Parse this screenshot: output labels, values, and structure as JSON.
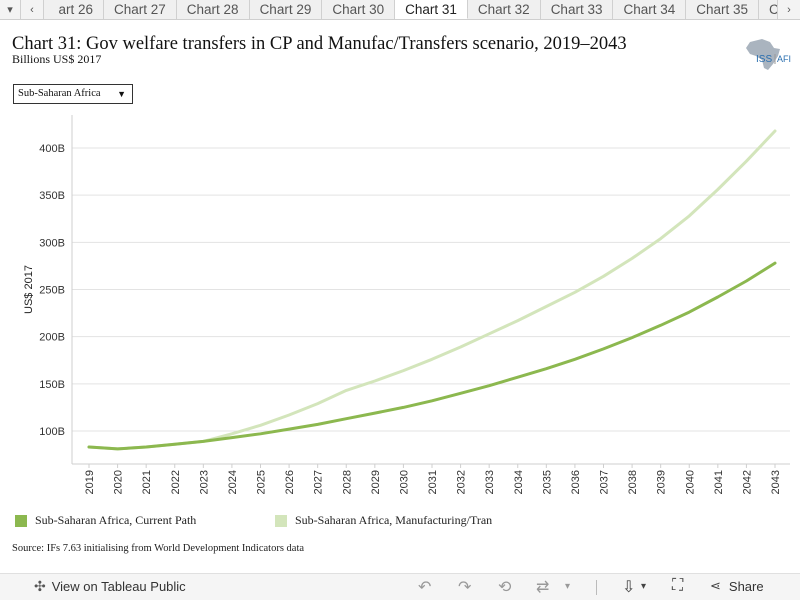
{
  "tabs": {
    "items": [
      "art 26",
      "Chart 27",
      "Chart 28",
      "Chart 29",
      "Chart 30",
      "Chart 31",
      "Chart 32",
      "Chart 33",
      "Chart 34",
      "Chart 35",
      "Chart"
    ],
    "active_index": 5
  },
  "header": {
    "title": "Chart 31: Gov welfare transfers in CP and Manufac/Transfers scenario, 2019–2043",
    "subtitle": "Billions US$ 2017",
    "logo_text": "ISS AFI"
  },
  "filter": {
    "selected": "Sub-Saharan Africa"
  },
  "chart_data": {
    "type": "line",
    "ylabel": "US$ 2017",
    "ylim": [
      65,
      435
    ],
    "yticks": [
      100,
      150,
      200,
      250,
      300,
      350,
      400
    ],
    "ytick_labels": [
      "100B",
      "150B",
      "200B",
      "250B",
      "300B",
      "350B",
      "400B"
    ],
    "x": [
      "2019",
      "2020",
      "2021",
      "2022",
      "2023",
      "2024",
      "2025",
      "2026",
      "2027",
      "2028",
      "2029",
      "2030",
      "2031",
      "2032",
      "2033",
      "2034",
      "2035",
      "2036",
      "2037",
      "2038",
      "2039",
      "2040",
      "2041",
      "2042",
      "2043"
    ],
    "grid": "horizontal",
    "legend_position": "bottom",
    "series": [
      {
        "name": "Sub-Saharan Africa, Current Path",
        "color": "#8cb84f",
        "values": [
          83,
          81,
          83,
          86,
          89,
          93,
          97,
          102,
          107,
          113,
          119,
          125,
          132,
          140,
          148,
          157,
          166,
          176,
          187,
          199,
          212,
          226,
          242,
          259,
          278
        ]
      },
      {
        "name": "Sub-Saharan Africa, Manufacturing/Tran",
        "color": "#d3e5bb",
        "values": [
          83,
          81,
          83,
          86,
          89,
          97,
          106,
          117,
          129,
          143,
          153,
          164,
          176,
          189,
          203,
          217,
          232,
          247,
          264,
          283,
          304,
          328,
          356,
          386,
          418
        ]
      }
    ]
  },
  "source": "Source: IFs 7.63 initialising from World Development Indicators data",
  "toolbar": {
    "view_label": "View on Tableau Public",
    "share_label": "Share"
  }
}
